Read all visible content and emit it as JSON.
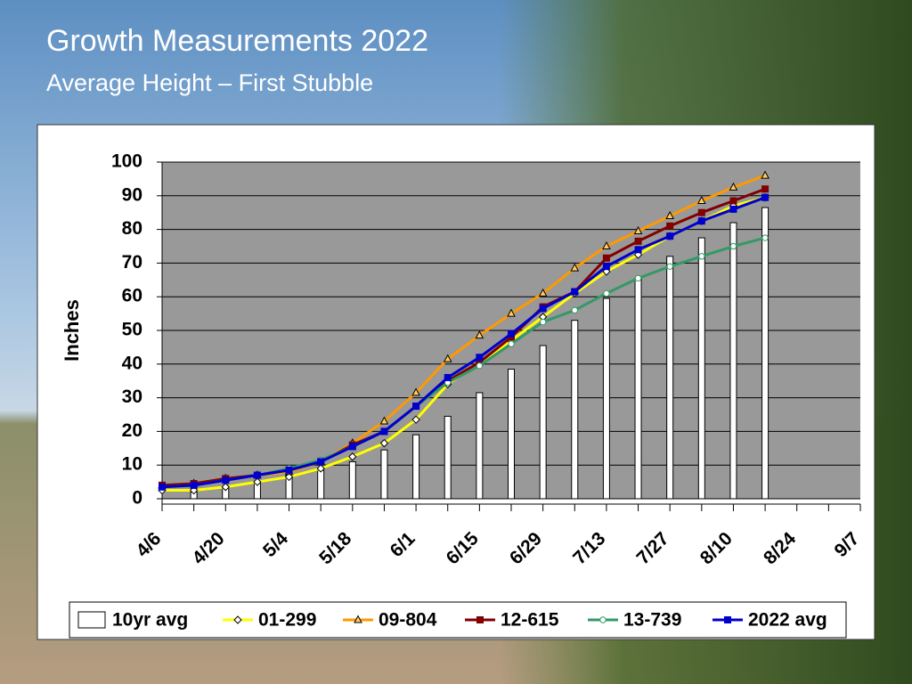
{
  "chart_data": {
    "type": "combo",
    "title": "Growth Measurements 2022",
    "subtitle": "Average Height – First Stubble",
    "y_label": "Inches",
    "categories": [
      "4/6",
      null,
      "4/20",
      null,
      "5/4",
      null,
      "5/18",
      null,
      "6/1",
      null,
      "6/15",
      null,
      "6/29",
      null,
      "7/13",
      null,
      "7/27",
      null,
      "8/10",
      null,
      "8/24",
      null,
      "9/7"
    ],
    "ylim": [
      0,
      100
    ],
    "yticks": [
      0,
      10,
      20,
      30,
      40,
      50,
      60,
      70,
      80,
      90,
      100
    ],
    "grid": true,
    "series": [
      {
        "name": "10yr avg",
        "type": "bar",
        "color": "#ffffff",
        "values": [
          null,
          2,
          3.5,
          5,
          7,
          8.5,
          11,
          14.5,
          19,
          24.5,
          31.5,
          38.5,
          45.5,
          53,
          59.5,
          65.5,
          72,
          77.5,
          82,
          86.5,
          null,
          null,
          null
        ]
      },
      {
        "name": "01-299",
        "type": "line",
        "marker": "diamond",
        "color": "#ffff00",
        "values": [
          2.5,
          2.5,
          3.5,
          5,
          6.5,
          9,
          12.5,
          16.5,
          23.5,
          34,
          40.5,
          47,
          54,
          61,
          67.5,
          72.5,
          78,
          82.5,
          87,
          89.5,
          null,
          null,
          null
        ]
      },
      {
        "name": "09-804",
        "type": "line",
        "marker": "triangle",
        "color": "#ff9900",
        "values": [
          4,
          4.5,
          6,
          7,
          8,
          11,
          16.5,
          23,
          31.5,
          41.5,
          48.5,
          55,
          61,
          68.5,
          75,
          79.5,
          84,
          88.5,
          92.5,
          96,
          null,
          null,
          null
        ]
      },
      {
        "name": "12-615",
        "type": "line",
        "marker": "square",
        "color": "#800000",
        "values": [
          4,
          4.5,
          6,
          7,
          8.5,
          11,
          16,
          20,
          27.5,
          35,
          40.5,
          48,
          57,
          61.5,
          71.5,
          76.5,
          81,
          85,
          88.5,
          92,
          null,
          null,
          null
        ]
      },
      {
        "name": "13-739",
        "type": "line",
        "marker": "circle",
        "color": "#339966",
        "values": [
          3.5,
          4,
          5.5,
          7,
          9,
          11.5,
          15.5,
          20,
          27.5,
          34.5,
          39.5,
          46,
          52.5,
          56,
          61,
          65.5,
          69,
          72,
          75,
          77.5,
          null,
          null,
          null
        ]
      },
      {
        "name": "2022 avg",
        "type": "line",
        "marker": "square",
        "color": "#0000cc",
        "values": [
          3.5,
          4,
          5.5,
          7,
          8.5,
          11,
          15.5,
          20,
          27.5,
          36,
          42,
          49,
          56.5,
          61.5,
          69,
          74,
          78,
          82.5,
          86,
          89.5,
          null,
          null,
          null
        ]
      }
    ]
  }
}
